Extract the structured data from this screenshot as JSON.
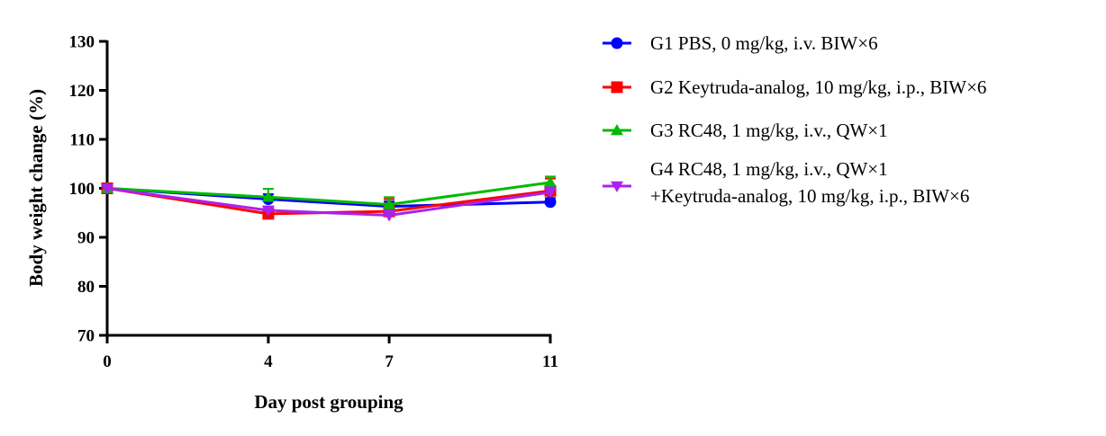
{
  "chart_data": {
    "type": "line",
    "title": "",
    "xlabel": "Day post grouping",
    "ylabel": "Body weight change (%)",
    "x": [
      0,
      4,
      7,
      11
    ],
    "x_ticks": [
      "0",
      "4",
      "7",
      "11"
    ],
    "y_ticks": [
      "70",
      "80",
      "90",
      "100",
      "110",
      "120",
      "130"
    ],
    "xlim": [
      0,
      11
    ],
    "ylim": [
      70,
      130
    ],
    "grid": false,
    "legend_position": "right",
    "series": [
      {
        "name": "G1 PBS, 0 mg/kg, i.v. BIW×6",
        "legend_lines": [
          "G1 PBS, 0 mg/kg, i.v. BIW×6"
        ],
        "color": "#0000ff",
        "marker": "circle",
        "values": [
          100,
          97.8,
          96.3,
          97.2
        ],
        "errors": [
          0.5,
          1.0,
          1.0,
          0.8
        ]
      },
      {
        "name": "G2 Keytruda-analog, 10 mg/kg, i.p., BIW×6",
        "legend_lines": [
          "G2 Keytruda-analog, 10 mg/kg, i.p., BIW×6"
        ],
        "color": "#ff0000",
        "marker": "square",
        "values": [
          100,
          94.8,
          95.3,
          99.5
        ],
        "errors": [
          0.5,
          1.0,
          2.5,
          2.5
        ]
      },
      {
        "name": "G3 RC48, 1 mg/kg, i.v., QW×1",
        "legend_lines": [
          "G3 RC48, 1 mg/kg, i.v., QW×1"
        ],
        "color": "#00bb00",
        "marker": "triangle-up",
        "values": [
          100,
          98.2,
          96.7,
          101.2
        ],
        "errors": [
          0.5,
          1.7,
          1.5,
          1.2
        ]
      },
      {
        "name": "G4 RC48, 1 mg/kg, i.v., QW×1 +Keytruda-analog, 10 mg/kg, i.p., BIW×6",
        "legend_lines": [
          "G4 RC48, 1 mg/kg, i.v., QW×1",
          "+Keytruda-analog, 10 mg/kg, i.p., BIW×6"
        ],
        "color": "#aa22ee",
        "marker": "triangle-down",
        "values": [
          100,
          95.5,
          94.5,
          99.2
        ],
        "errors": [
          0.5,
          0.8,
          1.0,
          1.0
        ]
      }
    ]
  }
}
